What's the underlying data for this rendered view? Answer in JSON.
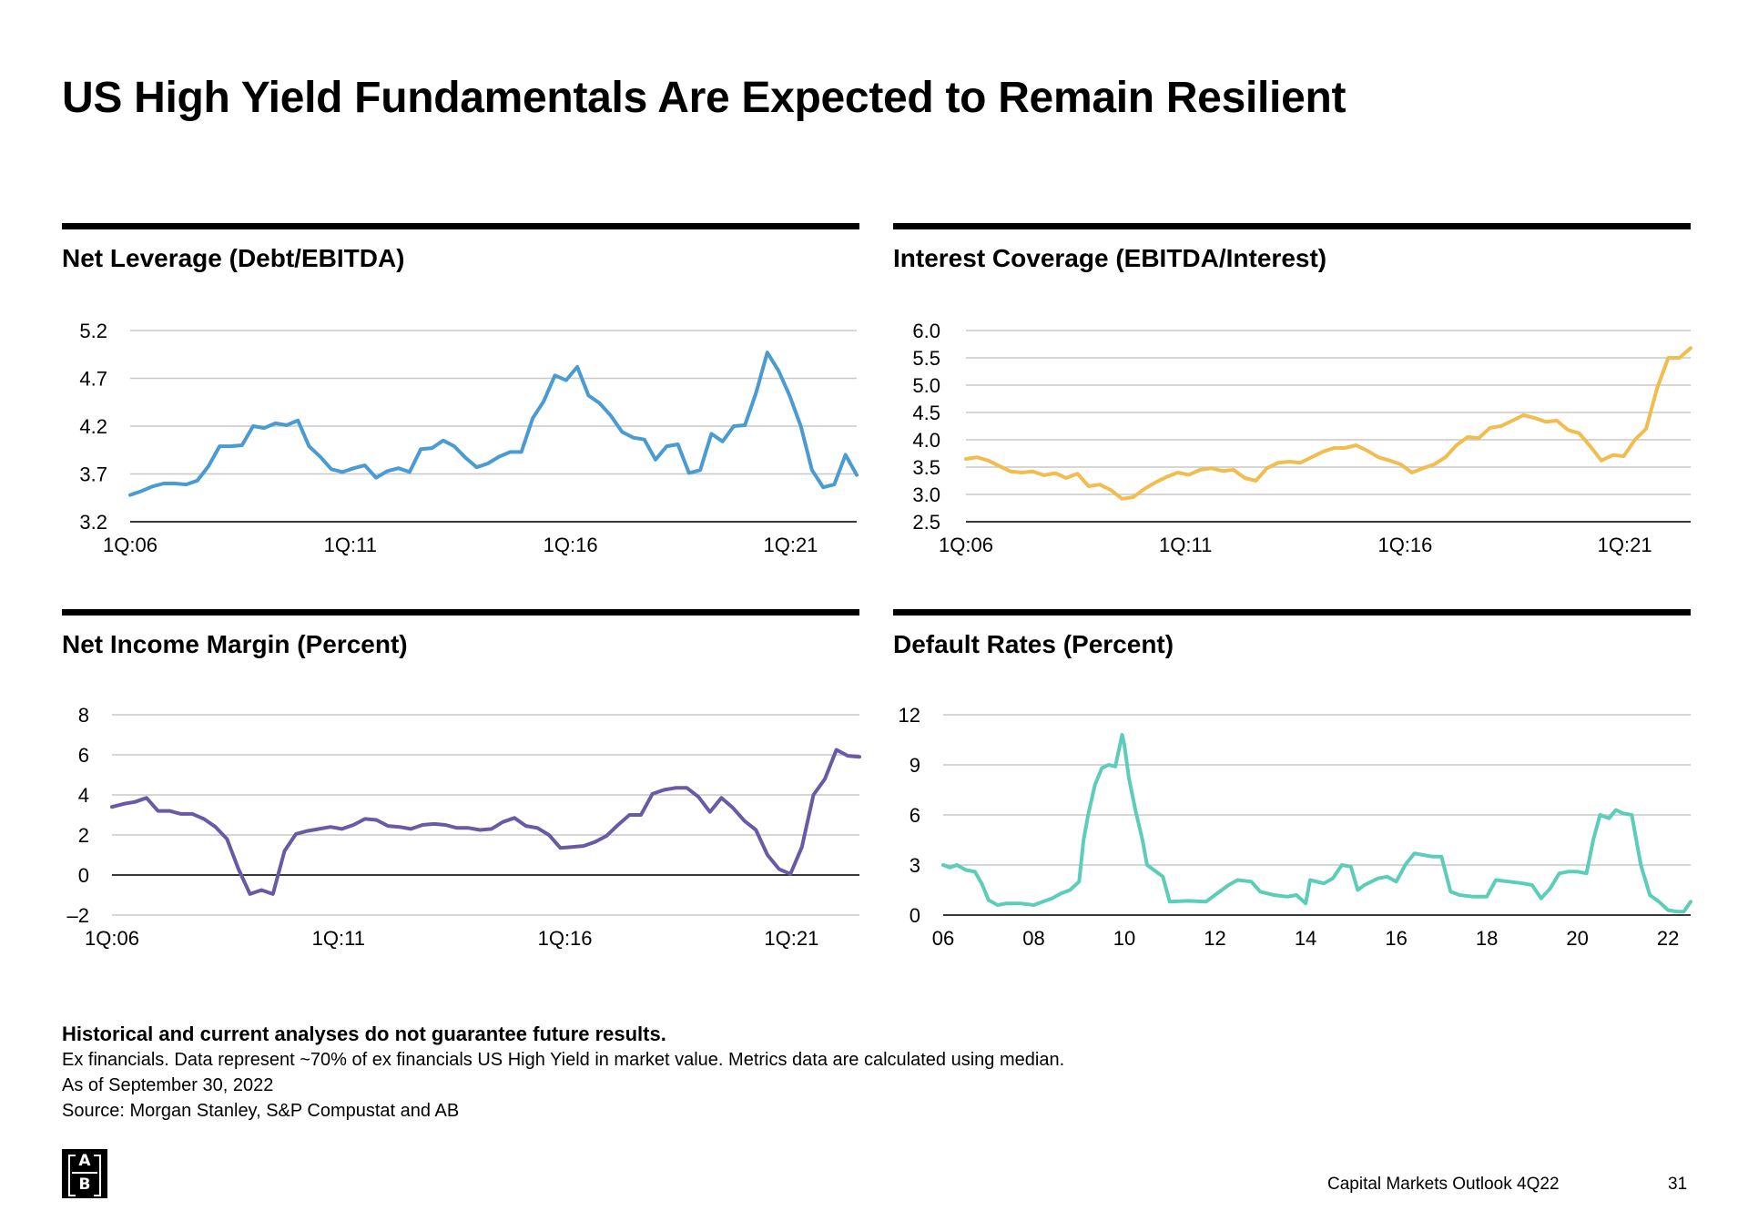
{
  "page": {
    "title": "US High Yield Fundamentals Are Expected to Remain Resilient",
    "disclaimer": "Historical and current analyses do not guarantee future results.",
    "note1": "Ex financials. Data represent ~70% of ex financials US High Yield in market value. Metrics data are calculated using median.",
    "note2": "As of September 30, 2022",
    "note3": "Source: Morgan Stanley, S&P Compustat and AB",
    "footer_publication": "Capital Markets Outlook 4Q22",
    "page_number": "31",
    "logo_top": "A",
    "logo_bottom": "B"
  },
  "chart_data": [
    {
      "id": "net-leverage",
      "type": "line",
      "title": "Net Leverage (Debt/EBITDA)",
      "color": "#4a9bd1",
      "x_start": 2006,
      "x_end": 2022.5,
      "ylim": [
        3.2,
        5.2
      ],
      "yticks": [
        "3.2",
        "3.7",
        "4.2",
        "4.7",
        "5.2"
      ],
      "baseline": 3.2,
      "xticks": [
        {
          "label": "1Q:06",
          "x": 2006
        },
        {
          "label": "1Q:11",
          "x": 2011
        },
        {
          "label": "1Q:16",
          "x": 2016
        },
        {
          "label": "1Q:21",
          "x": 2021
        }
      ],
      "series": [
        {
          "name": "Net Leverage",
          "values": [
            3.48,
            3.52,
            3.57,
            3.6,
            3.6,
            3.59,
            3.63,
            3.78,
            3.99,
            3.99,
            4.0,
            4.2,
            4.18,
            4.23,
            4.21,
            4.26,
            3.99,
            3.88,
            3.75,
            3.72,
            3.76,
            3.79,
            3.66,
            3.73,
            3.76,
            3.72,
            3.96,
            3.97,
            4.05,
            3.99,
            3.87,
            3.77,
            3.81,
            3.88,
            3.93,
            3.93,
            4.28,
            4.46,
            4.73,
            4.68,
            4.82,
            4.52,
            4.44,
            4.31,
            4.14,
            4.08,
            4.06,
            3.85,
            3.99,
            4.01,
            3.71,
            3.74,
            4.12,
            4.04,
            4.2,
            4.21,
            4.55,
            4.97,
            4.78,
            4.52,
            4.2,
            3.74,
            3.56,
            3.59,
            3.9,
            3.69
          ]
        }
      ]
    },
    {
      "id": "interest-coverage",
      "type": "line",
      "title": "Interest Coverage (EBITDA/Interest)",
      "color": "#f0bd4e",
      "x_start": 2006,
      "x_end": 2022.5,
      "ylim": [
        2.5,
        6.0
      ],
      "yticks": [
        "2.5",
        "3.0",
        "3.5",
        "4.0",
        "4.5",
        "5.0",
        "5.5",
        "6.0"
      ],
      "baseline": 2.5,
      "xticks": [
        {
          "label": "1Q:06",
          "x": 2006
        },
        {
          "label": "1Q:11",
          "x": 2011
        },
        {
          "label": "1Q:16",
          "x": 2016
        },
        {
          "label": "1Q:21",
          "x": 2021
        }
      ],
      "series": [
        {
          "name": "Interest Coverage",
          "values": [
            3.65,
            3.68,
            3.62,
            3.52,
            3.42,
            3.4,
            3.42,
            3.35,
            3.39,
            3.3,
            3.38,
            3.15,
            3.18,
            3.08,
            2.92,
            2.95,
            3.1,
            3.22,
            3.32,
            3.4,
            3.36,
            3.45,
            3.48,
            3.43,
            3.45,
            3.3,
            3.25,
            3.48,
            3.58,
            3.6,
            3.58,
            3.68,
            3.78,
            3.85,
            3.85,
            3.9,
            3.8,
            3.68,
            3.62,
            3.55,
            3.4,
            3.48,
            3.55,
            3.68,
            3.9,
            4.05,
            4.03,
            4.22,
            4.25,
            4.35,
            4.45,
            4.4,
            4.33,
            4.35,
            4.18,
            4.12,
            3.88,
            3.62,
            3.72,
            3.7,
            4.0,
            4.2,
            4.95,
            5.5,
            5.5,
            5.68
          ]
        }
      ]
    },
    {
      "id": "net-income-margin",
      "type": "line",
      "title": "Net Income Margin (Percent)",
      "color": "#6a5aa6",
      "x_start": 2006,
      "x_end": 2022.5,
      "ylim": [
        -2,
        8
      ],
      "yticks": [
        "–2",
        "0",
        "2",
        "4",
        "6",
        "8"
      ],
      "baseline": 0,
      "xticks": [
        {
          "label": "1Q:06",
          "x": 2006
        },
        {
          "label": "1Q:11",
          "x": 2011
        },
        {
          "label": "1Q:16",
          "x": 2016
        },
        {
          "label": "1Q:21",
          "x": 2021
        }
      ],
      "series": [
        {
          "name": "Net Income Margin",
          "values": [
            3.4,
            3.55,
            3.65,
            3.85,
            3.2,
            3.2,
            3.05,
            3.05,
            2.8,
            2.4,
            1.8,
            0.3,
            -0.95,
            -0.75,
            -0.95,
            1.2,
            2.05,
            2.2,
            2.3,
            2.4,
            2.3,
            2.5,
            2.8,
            2.75,
            2.45,
            2.4,
            2.3,
            2.5,
            2.55,
            2.5,
            2.35,
            2.35,
            2.25,
            2.3,
            2.65,
            2.85,
            2.45,
            2.35,
            2.0,
            1.35,
            1.4,
            1.45,
            1.65,
            1.95,
            2.5,
            3.0,
            3.0,
            4.05,
            4.25,
            4.35,
            4.35,
            3.9,
            3.15,
            3.85,
            3.35,
            2.7,
            2.25,
            1.0,
            0.3,
            0.05,
            1.4,
            4.0,
            4.8,
            6.25,
            5.95,
            5.9
          ]
        }
      ]
    },
    {
      "id": "default-rates",
      "type": "line",
      "title": "Default Rates (Percent)",
      "color": "#5ccdb8",
      "x_start": 2006,
      "x_end": 2022.5,
      "ylim": [
        0,
        12
      ],
      "yticks": [
        "0",
        "3",
        "6",
        "9",
        "12"
      ],
      "baseline": 0,
      "xticks": [
        {
          "label": "06",
          "x": 2006
        },
        {
          "label": "08",
          "x": 2008
        },
        {
          "label": "10",
          "x": 2010
        },
        {
          "label": "12",
          "x": 2012
        },
        {
          "label": "14",
          "x": 2014
        },
        {
          "label": "16",
          "x": 2016
        },
        {
          "label": "18",
          "x": 2018
        },
        {
          "label": "20",
          "x": 2020
        },
        {
          "label": "22",
          "x": 2022
        }
      ],
      "series": [
        {
          "name": "Default Rates",
          "x": [
            2006,
            2006.15,
            2006.3,
            2006.5,
            2006.7,
            2006.85,
            2007.0,
            2007.2,
            2007.4,
            2007.7,
            2008.0,
            2008.2,
            2008.4,
            2008.6,
            2008.8,
            2009.0,
            2009.1,
            2009.2,
            2009.35,
            2009.5,
            2009.65,
            2009.8,
            2009.95,
            2010.0,
            2010.1,
            2010.25,
            2010.4,
            2010.5,
            2010.7,
            2010.85,
            2011.0,
            2011.4,
            2011.8,
            2012.0,
            2012.3,
            2012.5,
            2012.8,
            2013.0,
            2013.3,
            2013.6,
            2013.8,
            2014.0,
            2014.1,
            2014.4,
            2014.6,
            2014.8,
            2015.0,
            2015.15,
            2015.3,
            2015.6,
            2015.8,
            2016.0,
            2016.2,
            2016.4,
            2016.6,
            2016.8,
            2017.0,
            2017.2,
            2017.4,
            2017.7,
            2018.0,
            2018.2,
            2018.5,
            2018.8,
            2019.0,
            2019.2,
            2019.4,
            2019.6,
            2019.8,
            2020.0,
            2020.2,
            2020.35,
            2020.5,
            2020.7,
            2020.85,
            2021.0,
            2021.2,
            2021.4,
            2021.6,
            2021.8,
            2022.0,
            2022.2,
            2022.35,
            2022.5
          ],
          "values": [
            3.0,
            2.85,
            3.0,
            2.7,
            2.6,
            1.9,
            0.9,
            0.6,
            0.7,
            0.7,
            0.6,
            0.8,
            1.0,
            1.3,
            1.5,
            2.0,
            4.5,
            6.0,
            7.8,
            8.8,
            9.0,
            8.9,
            10.8,
            10.2,
            8.2,
            6.2,
            4.5,
            3.0,
            2.6,
            2.3,
            0.8,
            0.85,
            0.8,
            1.2,
            1.8,
            2.1,
            2.0,
            1.4,
            1.2,
            1.1,
            1.2,
            0.7,
            2.1,
            1.9,
            2.2,
            3.0,
            2.9,
            1.5,
            1.8,
            2.2,
            2.3,
            2.0,
            3.0,
            3.7,
            3.6,
            3.5,
            3.5,
            1.4,
            1.2,
            1.1,
            1.1,
            2.1,
            2.0,
            1.9,
            1.8,
            1.0,
            1.6,
            2.5,
            2.6,
            2.6,
            2.5,
            4.5,
            6.0,
            5.8,
            6.3,
            6.1,
            6.0,
            3.0,
            1.2,
            0.8,
            0.3,
            0.2,
            0.2,
            0.8
          ]
        }
      ]
    }
  ]
}
